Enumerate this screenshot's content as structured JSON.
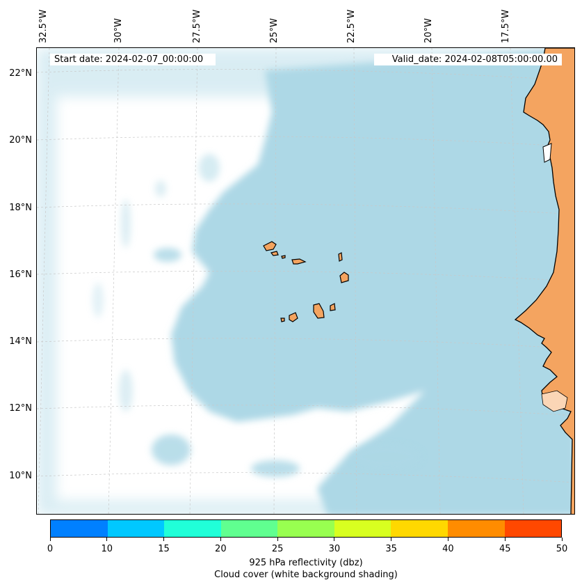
{
  "header": {
    "start_date": "Start date: 2024-02-07_00:00:00",
    "valid_date": "Valid_date: 2024-02-08T05:00:00.00"
  },
  "axes": {
    "lon_labels": [
      "32.5°W",
      "30°W",
      "27.5°W",
      "25°W",
      "22.5°W",
      "20°W",
      "17.5°W"
    ],
    "lat_labels": [
      "22°N",
      "20°N",
      "18°N",
      "16°N",
      "14°N",
      "12°N",
      "10°N"
    ]
  },
  "colorbar": {
    "ticks": [
      "0",
      "10",
      "15",
      "20",
      "25",
      "30",
      "35",
      "40",
      "45",
      "50"
    ],
    "colors": [
      "#0080ff",
      "#00c8ff",
      "#20ffd8",
      "#60ff90",
      "#98ff50",
      "#d8ff20",
      "#ffd800",
      "#ff8c00",
      "#ff4800"
    ],
    "label": "925 hPa reflectivity (dbz)",
    "sublabel": "Cloud cover (white background shading)"
  },
  "map_colors": {
    "cloud": "#add8e6",
    "land": "#f4a460",
    "clear": "#ffffff"
  }
}
